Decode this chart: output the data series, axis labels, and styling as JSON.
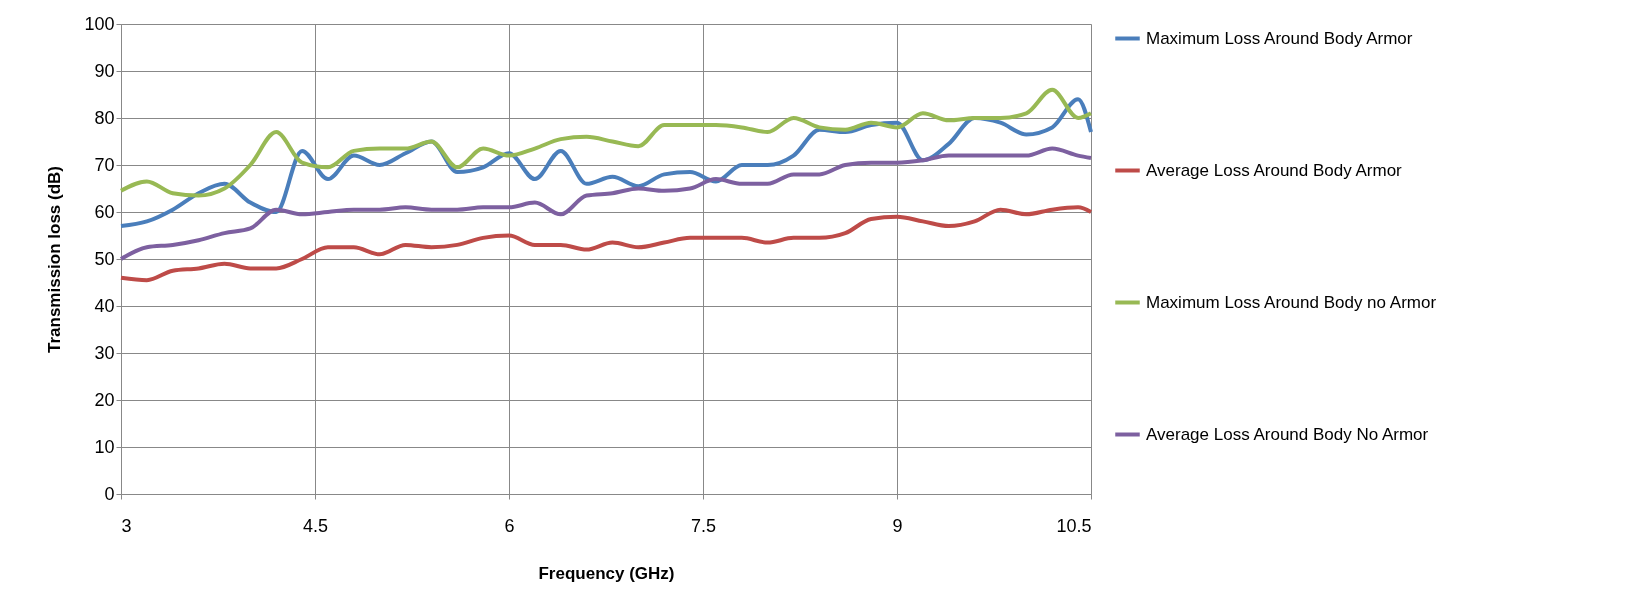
{
  "chart_data": {
    "type": "line",
    "xlabel": "Frequency (GHz)",
    "ylabel": "Transmission loss (dB)",
    "x": [
      3.0,
      3.2,
      3.4,
      3.6,
      3.8,
      4.0,
      4.2,
      4.4,
      4.6,
      4.8,
      5.0,
      5.2,
      5.4,
      5.6,
      5.8,
      6.0,
      6.2,
      6.4,
      6.6,
      6.8,
      7.0,
      7.2,
      7.4,
      7.6,
      7.8,
      8.0,
      8.2,
      8.4,
      8.6,
      8.8,
      9.0,
      9.2,
      9.4,
      9.6,
      9.8,
      10.0,
      10.2,
      10.4,
      10.5
    ],
    "series": [
      {
        "name": "Maximum Loss Around Body Armor",
        "color": "#4a7ebb",
        "values": [
          57,
          58,
          60.5,
          64,
          66,
          62,
          60,
          73,
          67,
          72,
          70,
          72.5,
          75,
          68.5,
          69.5,
          72.5,
          67,
          73,
          66,
          67.5,
          65.5,
          68,
          68.5,
          66.5,
          70,
          70,
          72,
          77.5,
          77,
          78.5,
          79,
          71,
          74.5,
          80,
          79,
          76.5,
          78,
          84,
          77
        ]
      },
      {
        "name": "Average Loss Around Body Armor",
        "color": "#be4b48",
        "values": [
          46,
          45.5,
          47.5,
          48,
          49,
          48,
          48,
          50,
          52.5,
          52.5,
          51,
          53,
          52.5,
          53,
          54.5,
          55,
          53,
          53,
          52,
          53.5,
          52.5,
          53.5,
          54.5,
          54.5,
          54.5,
          53.5,
          54.5,
          54.5,
          55.5,
          58.5,
          59,
          58,
          57,
          58,
          60.5,
          59.5,
          60.5,
          61,
          60
        ]
      },
      {
        "name": "Maximum Loss Around Body no Armor",
        "color": "#98b954",
        "values": [
          64.5,
          66.5,
          64,
          63.5,
          65,
          70,
          77,
          70.5,
          69.5,
          73,
          73.5,
          73.5,
          75,
          69.5,
          73.5,
          72,
          73.5,
          75.5,
          76,
          75,
          74,
          78.5,
          78.5,
          78.5,
          78,
          77,
          80,
          78,
          77.5,
          79,
          78,
          81,
          79.5,
          80,
          80,
          81,
          86,
          80,
          81
        ]
      },
      {
        "name": "Average Loss Around Body No Armor",
        "color": "#7d60a0",
        "values": [
          50,
          52.5,
          53,
          54,
          55.5,
          56.5,
          60.5,
          59.5,
          60,
          60.5,
          60.5,
          61,
          60.5,
          60.5,
          61,
          61,
          62,
          59.5,
          63.5,
          64,
          65,
          64.5,
          65,
          67,
          66,
          66,
          68,
          68,
          70,
          70.5,
          70.5,
          71,
          72,
          72,
          72,
          72,
          73.5,
          72,
          71.5
        ]
      }
    ],
    "xlim": [
      3,
      10.5
    ],
    "xticks": [
      3,
      4.5,
      6,
      7.5,
      9,
      10.5
    ],
    "ylim": [
      0,
      100
    ],
    "yticks": [
      0,
      10,
      20,
      30,
      40,
      50,
      60,
      70,
      80,
      90,
      100
    ],
    "grid": true,
    "legend": "right",
    "marker": "none",
    "line_style": "solid"
  }
}
